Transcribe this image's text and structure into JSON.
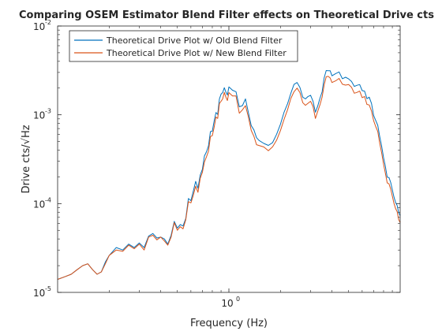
{
  "colors": {
    "background": "#ffffff",
    "axes": "#262626",
    "old_series": "#0072bd",
    "new_series": "#d95319"
  },
  "chart_data": {
    "type": "line",
    "title": "Comparing OSEM Estimator Blend Filter effects on Theoretical Drive cts",
    "xlabel": "Frequency (Hz)",
    "ylabel": "Drive cts/√Hz",
    "xscale": "log",
    "yscale": "log",
    "xlim": [
      0.1,
      10
    ],
    "ylim": [
      1e-05,
      0.01
    ],
    "xticks": [
      {
        "value": 1,
        "label": "10",
        "exp": "0"
      }
    ],
    "yticks": [
      {
        "value": 1e-05,
        "label": "10",
        "exp": "-5"
      },
      {
        "value": 0.0001,
        "label": "10",
        "exp": "-4"
      },
      {
        "value": 0.001,
        "label": "10",
        "exp": "-3"
      },
      {
        "value": 0.01,
        "label": "10",
        "exp": "-2"
      }
    ],
    "grid": false,
    "legend_location": "top-left",
    "series": [
      {
        "name": "Theoretical Drive Plot w/ Old Blend Filter",
        "color": "#0072bd",
        "x": [
          0.1,
          0.11,
          0.12,
          0.13,
          0.14,
          0.15,
          0.16,
          0.17,
          0.18,
          0.19,
          0.2,
          0.22,
          0.24,
          0.26,
          0.28,
          0.3,
          0.32,
          0.34,
          0.36,
          0.38,
          0.4,
          0.42,
          0.44,
          0.46,
          0.48,
          0.5,
          0.52,
          0.54,
          0.56,
          0.58,
          0.6,
          0.62,
          0.64,
          0.66,
          0.68,
          0.7,
          0.72,
          0.74,
          0.76,
          0.78,
          0.8,
          0.82,
          0.84,
          0.86,
          0.88,
          0.9,
          0.92,
          0.94,
          0.96,
          0.98,
          1.0,
          1.05,
          1.1,
          1.15,
          1.2,
          1.25,
          1.3,
          1.35,
          1.4,
          1.45,
          1.5,
          1.6,
          1.7,
          1.8,
          1.9,
          2.0,
          2.1,
          2.2,
          2.3,
          2.4,
          2.5,
          2.6,
          2.7,
          2.8,
          2.9,
          3.0,
          3.1,
          3.2,
          3.3,
          3.4,
          3.5,
          3.6,
          3.7,
          3.8,
          3.9,
          4.0,
          4.2,
          4.4,
          4.6,
          4.8,
          5.0,
          5.2,
          5.4,
          5.6,
          5.8,
          6.0,
          6.2,
          6.4,
          6.6,
          6.8,
          7.0,
          7.2,
          7.4,
          7.6,
          7.8,
          8.0,
          8.2,
          8.4,
          8.6,
          8.8,
          9.0,
          9.2,
          9.4,
          9.6,
          9.8,
          10.0
        ],
        "y": [
          1.4e-05,
          1.5e-05,
          1.6e-05,
          1.8e-05,
          2e-05,
          2.1e-05,
          1.8e-05,
          1.6e-05,
          1.7e-05,
          2.2e-05,
          2.6e-05,
          3.2e-05,
          3e-05,
          3.5e-05,
          3.2e-05,
          3.6e-05,
          3.2e-05,
          4.3e-05,
          4.6e-05,
          4.1e-05,
          4.2e-05,
          4e-05,
          3.5e-05,
          4.4e-05,
          6.3e-05,
          5.3e-05,
          5.8e-05,
          5.6e-05,
          6.8e-05,
          0.000114,
          0.000108,
          0.000138,
          0.000178,
          0.000149,
          0.00021,
          0.000243,
          0.000344,
          0.000383,
          0.000445,
          0.000646,
          0.000655,
          0.000848,
          0.00106,
          0.00101,
          0.00151,
          0.00171,
          0.00178,
          0.00202,
          0.0018,
          0.00167,
          0.00206,
          0.00189,
          0.00182,
          0.00123,
          0.00127,
          0.00151,
          0.00106,
          0.000756,
          0.000676,
          0.000553,
          0.000514,
          0.000476,
          0.000452,
          0.000487,
          0.000605,
          0.000782,
          0.00107,
          0.00133,
          0.00175,
          0.0022,
          0.00231,
          0.00203,
          0.00158,
          0.00151,
          0.00161,
          0.00166,
          0.00142,
          0.00107,
          0.00125,
          0.00153,
          0.00181,
          0.00261,
          0.00315,
          0.00314,
          0.00314,
          0.00275,
          0.00291,
          0.00304,
          0.00255,
          0.00265,
          0.00254,
          0.00237,
          0.00209,
          0.00215,
          0.00219,
          0.00187,
          0.00185,
          0.00152,
          0.00158,
          0.00134,
          0.000981,
          0.000864,
          0.000761,
          0.000567,
          0.000439,
          0.000328,
          0.000261,
          0.000198,
          0.000197,
          0.000173,
          0.000143,
          0.000119,
          0.000103,
          9.5e-05,
          7.9e-05,
          7.3e-05
        ]
      },
      {
        "name": "Theoretical Drive Plot w/ New Blend Filter",
        "color": "#d95319",
        "x": [
          0.1,
          0.11,
          0.12,
          0.13,
          0.14,
          0.15,
          0.16,
          0.17,
          0.18,
          0.19,
          0.2,
          0.22,
          0.24,
          0.26,
          0.28,
          0.3,
          0.32,
          0.34,
          0.36,
          0.38,
          0.4,
          0.42,
          0.44,
          0.46,
          0.48,
          0.5,
          0.52,
          0.54,
          0.56,
          0.58,
          0.6,
          0.62,
          0.64,
          0.66,
          0.68,
          0.7,
          0.72,
          0.74,
          0.76,
          0.78,
          0.8,
          0.82,
          0.84,
          0.86,
          0.88,
          0.9,
          0.92,
          0.94,
          0.96,
          0.98,
          1.0,
          1.05,
          1.1,
          1.15,
          1.2,
          1.25,
          1.3,
          1.35,
          1.4,
          1.45,
          1.5,
          1.6,
          1.7,
          1.8,
          1.9,
          2.0,
          2.1,
          2.2,
          2.3,
          2.4,
          2.5,
          2.6,
          2.7,
          2.8,
          2.9,
          3.0,
          3.1,
          3.2,
          3.3,
          3.4,
          3.5,
          3.6,
          3.7,
          3.8,
          3.9,
          4.0,
          4.2,
          4.4,
          4.6,
          4.8,
          5.0,
          5.2,
          5.4,
          5.6,
          5.8,
          6.0,
          6.2,
          6.4,
          6.6,
          6.8,
          7.0,
          7.2,
          7.4,
          7.6,
          7.8,
          8.0,
          8.2,
          8.4,
          8.6,
          8.8,
          9.0,
          9.2,
          9.4,
          9.6,
          9.8,
          10.0
        ],
        "y": [
          1.4e-05,
          1.5e-05,
          1.6e-05,
          1.8e-05,
          2e-05,
          2.1e-05,
          1.8e-05,
          1.6e-05,
          1.7e-05,
          2.1e-05,
          2.6e-05,
          3e-05,
          2.9e-05,
          3.4e-05,
          3.1e-05,
          3.5e-05,
          3e-05,
          4.2e-05,
          4.4e-05,
          3.9e-05,
          4.2e-05,
          3.8e-05,
          3.4e-05,
          4.2e-05,
          6.1e-05,
          5e-05,
          5.5e-05,
          5.2e-05,
          6.6e-05,
          0.000105,
          0.000102,
          0.000124,
          0.000157,
          0.000134,
          0.000193,
          0.000225,
          0.000294,
          0.000337,
          0.000388,
          0.000568,
          0.000583,
          0.000724,
          0.000944,
          0.00091,
          0.00134,
          0.00142,
          0.00151,
          0.00179,
          0.00158,
          0.00145,
          0.00178,
          0.00163,
          0.00163,
          0.00104,
          0.00114,
          0.00127,
          0.000945,
          0.000667,
          0.000573,
          0.000461,
          0.000451,
          0.000434,
          0.000394,
          0.000436,
          0.000519,
          0.000664,
          0.000887,
          0.00114,
          0.00153,
          0.00182,
          0.002,
          0.00178,
          0.00137,
          0.00128,
          0.00135,
          0.00142,
          0.00124,
          0.000909,
          0.00109,
          0.00129,
          0.00158,
          0.00217,
          0.00268,
          0.00271,
          0.0026,
          0.00231,
          0.00241,
          0.00257,
          0.00221,
          0.00216,
          0.00219,
          0.00204,
          0.00175,
          0.00179,
          0.00185,
          0.00156,
          0.00161,
          0.00131,
          0.00129,
          0.0011,
          0.000857,
          0.000738,
          0.000651,
          0.000477,
          0.00037,
          0.000276,
          0.000219,
          0.000171,
          0.000167,
          0.000146,
          0.000121,
          0.000101,
          8.8e-05,
          8.1e-05,
          6.6e-05,
          6.1e-05
        ]
      }
    ]
  }
}
